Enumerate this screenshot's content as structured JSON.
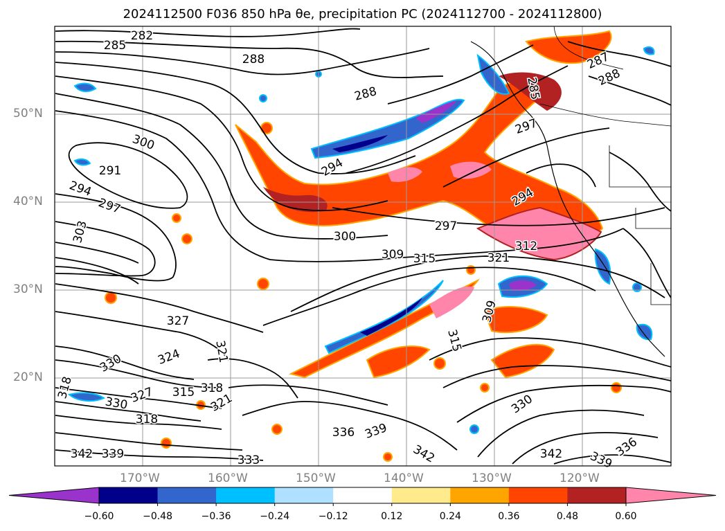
{
  "title": "2024112500 F036 850 hPa θe, precipitation PC (2024112700 - 2024112800)",
  "lon_labels": [
    "170°W",
    "160°W",
    "150°W",
    "140°W",
    "130°W",
    "120°W"
  ],
  "lat_labels": [
    "50°N",
    "40°N",
    "30°N",
    "20°N"
  ],
  "colorbar": {
    "tick_labels": [
      "−0.60",
      "−0.48",
      "−0.36",
      "−0.24",
      "−0.12",
      "0.12",
      "0.24",
      "0.36",
      "0.48",
      "0.60"
    ],
    "colors": [
      "#9933cc",
      "#00008b",
      "#3366cc",
      "#00bfff",
      "#b0e0ff",
      "#ffffff",
      "#ffeb8c",
      "#ffa500",
      "#ff4500",
      "#b22222",
      "#ff85aa"
    ]
  },
  "contour_labels": [
    "282",
    "285",
    "288",
    "288",
    "287",
    "288",
    "285",
    "297",
    "300",
    "291",
    "294",
    "297",
    "294",
    "303",
    "294",
    "300",
    "297",
    "309",
    "315",
    "321",
    "312",
    "327",
    "324",
    "321",
    "330",
    "318",
    "315",
    "318",
    "327",
    "318",
    "321",
    "330",
    "336",
    "339",
    "342",
    "339",
    "342",
    "333",
    "342",
    "339",
    "336",
    "309",
    "315",
    "330"
  ]
}
